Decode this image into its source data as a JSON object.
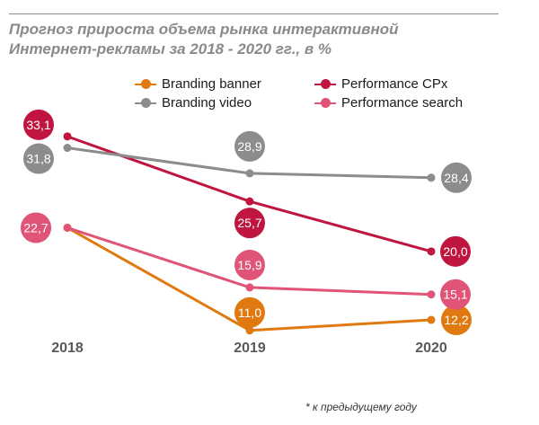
{
  "title_lines": [
    "Прогноз прироста объема рынка интерактивной",
    "Интернет-рекламы за 2018 - 2020 гг., в %"
  ],
  "footnote": "* к предыдущему году",
  "chart_data": {
    "type": "line",
    "categories": [
      "2018",
      "2019",
      "2020"
    ],
    "series": [
      {
        "name": "Branding banner",
        "color": "#e07a10",
        "values": [
          22.7,
          11.0,
          12.2
        ],
        "labels": [
          "22,7",
          "11,0",
          "12,2"
        ]
      },
      {
        "name": "Performance CPx",
        "color": "#c0153f",
        "values": [
          33.1,
          25.7,
          20.0
        ],
        "labels": [
          "33,1",
          "25,7",
          "20,0"
        ]
      },
      {
        "name": "Branding video",
        "color": "#8c8c8c",
        "values": [
          31.8,
          28.9,
          28.4
        ],
        "labels": [
          "31,8",
          "28,9",
          "28,4"
        ]
      },
      {
        "name": "Performance search",
        "color": "#e05577",
        "values": [
          22.7,
          15.9,
          15.1
        ],
        "labels": [
          "22,7",
          "15,9",
          "15,1"
        ]
      }
    ],
    "legend_position": "top",
    "grid": false
  }
}
